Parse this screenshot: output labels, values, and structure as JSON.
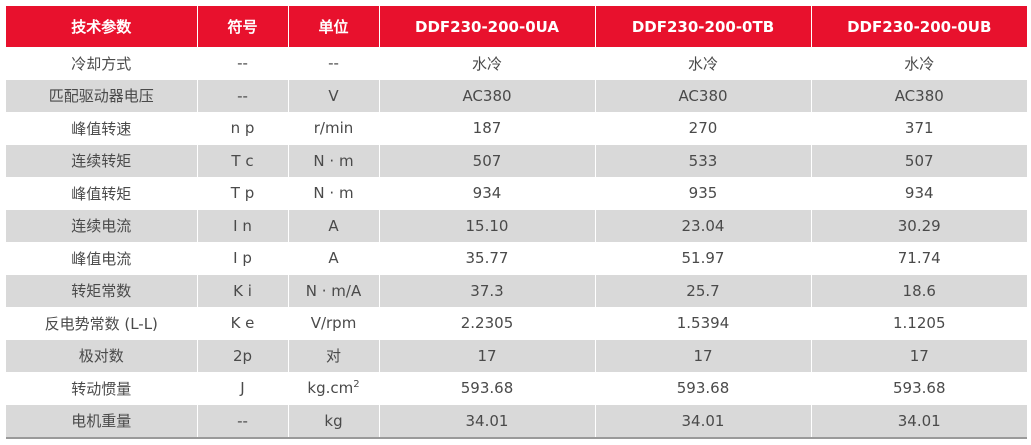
{
  "header": {
    "param": "技术参数",
    "symbol": "符号",
    "unit": "单位",
    "models": [
      "DDF230-200-0UA",
      "DDF230-200-0TB",
      "DDF230-200-0UB"
    ]
  },
  "rows": [
    {
      "param": "冷却方式",
      "symbol": "--",
      "unit": "--",
      "values": [
        "水冷",
        "水冷",
        "水冷"
      ]
    },
    {
      "param": "匹配驱动器电压",
      "symbol": "--",
      "unit": "V",
      "values": [
        "AC380",
        "AC380",
        "AC380"
      ]
    },
    {
      "param": "峰值转速",
      "symbol": "n p",
      "unit": "r/min",
      "values": [
        "187",
        "270",
        "371"
      ]
    },
    {
      "param": "连续转矩",
      "symbol": "T c",
      "unit": "N · m",
      "values": [
        "507",
        "533",
        "507"
      ]
    },
    {
      "param": "峰值转矩",
      "symbol": "T p",
      "unit": "N · m",
      "values": [
        "934",
        "935",
        "934"
      ]
    },
    {
      "param": "连续电流",
      "symbol": "I n",
      "unit": "A",
      "values": [
        "15.10",
        "23.04",
        "30.29"
      ]
    },
    {
      "param": "峰值电流",
      "symbol": "I p",
      "unit": "A",
      "values": [
        "35.77",
        "51.97",
        "71.74"
      ]
    },
    {
      "param": "转矩常数",
      "symbol": "K i",
      "unit": "N · m/A",
      "values": [
        "37.3",
        "25.7",
        "18.6"
      ]
    },
    {
      "param": "反电势常数 (L-L)",
      "symbol": "K e",
      "unit": "V/rpm",
      "values": [
        "2.2305",
        "1.5394",
        "1.1205"
      ]
    },
    {
      "param": "极对数",
      "symbol": "2p",
      "unit": "对",
      "values": [
        "17",
        "17",
        "17"
      ]
    },
    {
      "param": "转动惯量",
      "symbol": "J",
      "unit": "kg.cm",
      "unit_sup": "2",
      "values": [
        "593.68",
        "593.68",
        "593.68"
      ]
    },
    {
      "param": "电机重量",
      "symbol": "--",
      "unit": "kg",
      "values": [
        "34.01",
        "34.01",
        "34.01"
      ]
    }
  ],
  "colors": {
    "header_bg": "#e8112d",
    "stripe": "#d9d9d9"
  }
}
